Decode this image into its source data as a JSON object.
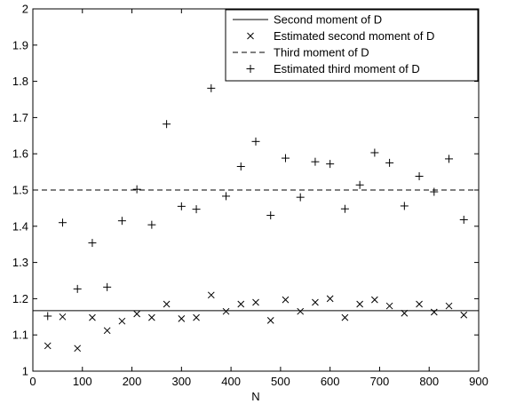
{
  "chart_data": {
    "type": "scatter",
    "title": "",
    "xlabel": "N",
    "ylabel": "",
    "xlim": [
      0,
      900
    ],
    "ylim": [
      1,
      2
    ],
    "xticks": [
      "0",
      "100",
      "200",
      "300",
      "400",
      "500",
      "600",
      "700",
      "800",
      "900"
    ],
    "yticks": [
      "1",
      "1.1",
      "1.2",
      "1.3",
      "1.4",
      "1.5",
      "1.6",
      "1.7",
      "1.8",
      "1.9",
      "2"
    ],
    "grid": false,
    "legend_position": "top-right",
    "series": [
      {
        "name": "Second moment of D",
        "kind": "line",
        "line_style": "solid",
        "x": [
          0,
          900
        ],
        "values": [
          1.167,
          1.167
        ]
      },
      {
        "name": "Estimated second moment of D",
        "kind": "markers",
        "marker": "x",
        "x": [
          30,
          60,
          90,
          120,
          150,
          180,
          210,
          240,
          270,
          300,
          330,
          360,
          390,
          420,
          450,
          480,
          510,
          540,
          570,
          600,
          630,
          660,
          690,
          720,
          750,
          780,
          810,
          840,
          870
        ],
        "values": [
          1.07,
          1.15,
          1.063,
          1.148,
          1.112,
          1.138,
          1.158,
          1.148,
          1.185,
          1.145,
          1.148,
          1.21,
          1.165,
          1.185,
          1.19,
          1.14,
          1.197,
          1.165,
          1.19,
          1.2,
          1.148,
          1.185,
          1.197,
          1.18,
          1.16,
          1.185,
          1.163,
          1.18,
          1.155
        ]
      },
      {
        "name": "Third moment of D",
        "kind": "line",
        "line_style": "dashed",
        "x": [
          0,
          900
        ],
        "values": [
          1.5,
          1.5
        ]
      },
      {
        "name": "Estimated third moment of D",
        "kind": "markers",
        "marker": "+",
        "x": [
          30,
          60,
          90,
          120,
          150,
          180,
          210,
          240,
          270,
          300,
          330,
          360,
          390,
          420,
          450,
          480,
          510,
          540,
          570,
          600,
          630,
          660,
          690,
          720,
          750,
          780,
          810,
          840,
          870
        ],
        "values": [
          1.152,
          1.41,
          1.227,
          1.354,
          1.232,
          1.415,
          1.502,
          1.404,
          1.682,
          1.455,
          1.447,
          1.781,
          1.483,
          1.565,
          1.634,
          1.43,
          1.588,
          1.48,
          1.578,
          1.572,
          1.448,
          1.514,
          1.603,
          1.575,
          1.456,
          1.538,
          1.495,
          1.586,
          1.418
        ]
      }
    ]
  }
}
